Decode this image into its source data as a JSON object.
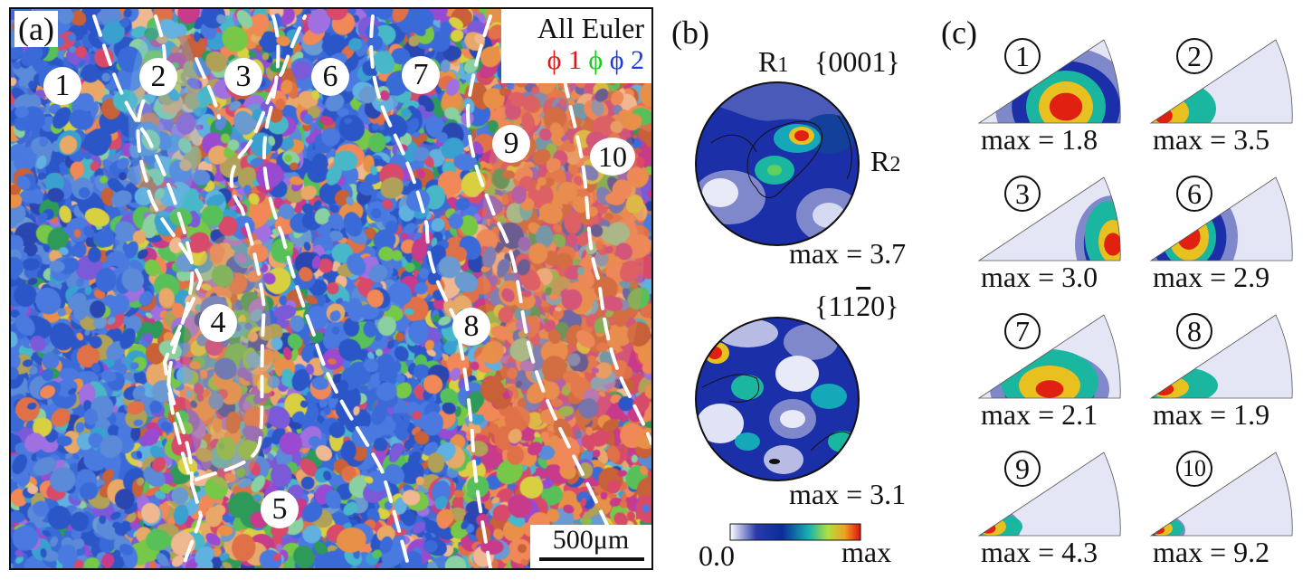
{
  "panel_a": {
    "tag": "(a)",
    "legend": {
      "title": "All Euler",
      "phi1": "ϕ 1",
      "phi": "ϕ",
      "phi2": "ϕ 2"
    },
    "regions": [
      "1",
      "2",
      "3",
      "4",
      "5",
      "6",
      "7",
      "8",
      "9",
      "10"
    ],
    "scale_bar": "500μm",
    "colors": {
      "phi1": "#e01818",
      "phi": "#18d018",
      "phi2": "#1c3ce0"
    }
  },
  "panel_b": {
    "tag": "(b)",
    "pf1": {
      "label": "{0001}",
      "r1_base": "R",
      "r1_sub": "1",
      "r2_base": "R",
      "r2_sub": "2",
      "max": "max = 3.7"
    },
    "pf2": {
      "label_pre": "{11",
      "label_bar": "2",
      "label_post": "0}",
      "max": "max = 3.1"
    },
    "colorbar": {
      "min": "0.0",
      "max": "max"
    }
  },
  "panel_c": {
    "tag": "(c)",
    "ipfs": [
      {
        "num": "1",
        "max": "max = 1.8"
      },
      {
        "num": "2",
        "max": "max = 3.5"
      },
      {
        "num": "3",
        "max": "max = 3.0"
      },
      {
        "num": "6",
        "max": "max = 2.9"
      },
      {
        "num": "7",
        "max": "max = 2.1"
      },
      {
        "num": "8",
        "max": "max = 1.9"
      },
      {
        "num": "9",
        "max": "max = 4.3"
      },
      {
        "num": "10",
        "max": "max = 9.2"
      }
    ]
  }
}
